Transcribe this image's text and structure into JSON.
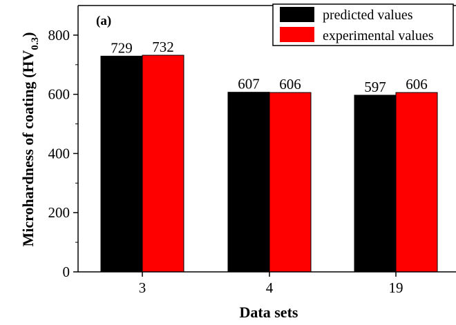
{
  "chart_data": {
    "type": "bar",
    "panel_label": "(a)",
    "xlabel": "Data sets",
    "ylabel_main": "Microhardness of coating (HV",
    "ylabel_sub": "0.3",
    "ylabel_close": ")",
    "categories": [
      "3",
      "4",
      "19"
    ],
    "ylim": [
      0,
      900
    ],
    "yticks": [
      0,
      200,
      400,
      600,
      800
    ],
    "series": [
      {
        "name": "predicted values",
        "values": [
          729,
          607,
          597
        ],
        "color": "#000000"
      },
      {
        "name": "experimental values",
        "values": [
          732,
          606,
          606
        ],
        "color": "#ff0000"
      }
    ],
    "legend_position": "top-right",
    "grid": false
  }
}
